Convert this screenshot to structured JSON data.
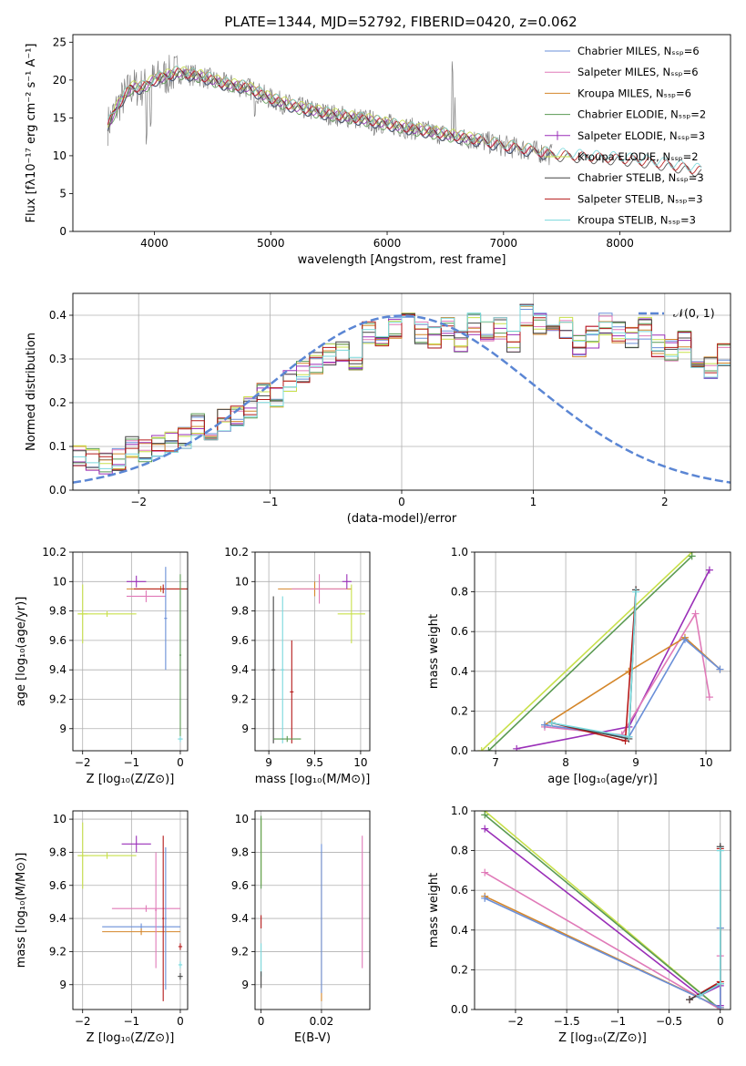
{
  "page": {
    "title": "PLATE=1344, MJD=52792, FIBERID=0420, z=0.062"
  },
  "palette": {
    "Chabrier MILES": "#6a8fd8",
    "Salpeter MILES": "#e07ab8",
    "Kroupa MILES": "#d4862a",
    "Chabrier ELODIE": "#5a9a52",
    "Salpeter ELODIE": "#9a2fb8",
    "Kroupa ELODIE": "#c8e04a",
    "Chabrier STELIB": "#444444",
    "Salpeter STELIB": "#b51a1a",
    "Kroupa STELIB": "#7ad8dc",
    "data": "#808080",
    "gaussian": "#5b86d4"
  },
  "chart_data": [
    {
      "id": "spectrum",
      "type": "line",
      "xlabel": "wavelength [Angstrom, rest frame]",
      "ylabel": "Flux [fλ10⁻¹⁷ erg cm⁻² s⁻¹ A⁻¹]",
      "xlim": [
        3300,
        8950
      ],
      "ylim": [
        0,
        26
      ],
      "xticks": [
        4000,
        5000,
        6000,
        7000,
        8000
      ],
      "yticks": [
        0,
        5,
        10,
        15,
        20,
        25
      ],
      "legend_position": "top-right",
      "legend": [
        "Chabrier MILES, Nₛₛₚ=6",
        "Salpeter MILES, Nₛₛₚ=6",
        "Kroupa MILES, Nₛₛₚ=6",
        "Chabrier ELODIE, Nₛₛₚ=2",
        "Salpeter ELODIE, Nₛₛₚ=3",
        "Kroupa ELODIE, Nₛₛₚ=2",
        "Chabrier STELIB, Nₛₛₚ=3",
        "Salpeter STELIB, Nₛₛₚ=3",
        "Kroupa STELIB, Nₛₛₚ=3"
      ],
      "continuum": {
        "x": [
          3600,
          3700,
          3800,
          3900,
          4000,
          4200,
          4400,
          4600,
          4800,
          5000,
          5200,
          5500,
          5800,
          6000,
          6200,
          6500,
          6800,
          7000,
          7200,
          7400,
          7600,
          7800,
          8000,
          8200,
          8500,
          8700
        ],
        "y": [
          14,
          17,
          19,
          19,
          20,
          21,
          20.5,
          19.5,
          19,
          17.5,
          16.5,
          15.5,
          14.8,
          14.2,
          13.6,
          12.8,
          12,
          11.3,
          10.8,
          10.2,
          10,
          9.8,
          9.6,
          9.3,
          8.6,
          8.0
        ]
      }
    },
    {
      "id": "residual-histogram",
      "type": "bar",
      "xlabel": "(data-model)/error",
      "ylabel": "Normed distribution",
      "xlim": [
        -2.5,
        2.5
      ],
      "ylim": [
        0,
        0.45
      ],
      "xticks": [
        -2,
        -1,
        0,
        1,
        2
      ],
      "yticks": [
        0.0,
        0.1,
        0.2,
        0.3,
        0.4
      ],
      "legend_position": "top-right",
      "gaussian_label": "𝒩(0, 1)",
      "bin_width": 0.1,
      "bin_start": -2.5,
      "reference_values": [
        0.08,
        0.07,
        0.06,
        0.07,
        0.1,
        0.09,
        0.1,
        0.11,
        0.12,
        0.15,
        0.14,
        0.16,
        0.17,
        0.19,
        0.22,
        0.21,
        0.25,
        0.27,
        0.29,
        0.31,
        0.32,
        0.3,
        0.36,
        0.34,
        0.37,
        0.38,
        0.36,
        0.35,
        0.37,
        0.34,
        0.38,
        0.36,
        0.37,
        0.34,
        0.4,
        0.38,
        0.36,
        0.37,
        0.33,
        0.35,
        0.38,
        0.36,
        0.35,
        0.37,
        0.33,
        0.32,
        0.34,
        0.3,
        0.28,
        0.31,
        0.27,
        0.25,
        0.24,
        0.22,
        0.2,
        0.19,
        0.17,
        0.15,
        0.13,
        0.11,
        0.1,
        0.09,
        0.08,
        0.07,
        0.06,
        0.05,
        0.05,
        0.04,
        0.03,
        0.03,
        0.03,
        0.02,
        0.02,
        0.02,
        0.02
      ]
    },
    {
      "id": "age-vs-Z",
      "type": "scatter",
      "xlabel": "Z [log₁₀(Z/Z⊙)]",
      "ylabel": "age  [log₁₀(age/yr)]",
      "xlim": [
        -2.2,
        0.15
      ],
      "ylim": [
        8.85,
        10.2
      ],
      "xticks": [
        -2,
        -1,
        0
      ],
      "yticks": [
        9.0,
        9.2,
        9.4,
        9.6,
        9.8,
        10.0,
        10.2
      ],
      "points": [
        {
          "model": "Kroupa ELODIE",
          "x": -2.0,
          "y": 9.78,
          "xerr": 0.1,
          "yerr": 0.2
        },
        {
          "model": "Kroupa ELODIE",
          "x": -1.5,
          "y": 9.78,
          "xerr": 0.6,
          "yerr": 0.02
        },
        {
          "model": "Salpeter ELODIE",
          "x": -0.9,
          "y": 10.0,
          "xerr": 0.2,
          "yerr": 0.04
        },
        {
          "model": "Salpeter MILES",
          "x": -0.7,
          "y": 9.9,
          "xerr": 0.4,
          "yerr": 0.04
        },
        {
          "model": "Kroupa MILES",
          "x": -0.4,
          "y": 9.95,
          "xerr": 0.7,
          "yerr": 0.02
        },
        {
          "model": "Salpeter STELIB",
          "x": -0.35,
          "y": 9.95,
          "xerr": 0.6,
          "yerr": 0.03
        },
        {
          "model": "Chabrier MILES",
          "x": -0.3,
          "y": 9.75,
          "xerr": 0.03,
          "yerr": 0.35
        },
        {
          "model": "Kroupa STELIB",
          "x": 0.0,
          "y": 8.93,
          "xerr": 0.05,
          "yerr": 0.02
        },
        {
          "model": "Chabrier ELODIE",
          "x": 0.0,
          "y": 9.5,
          "xerr": 0.02,
          "yerr": 0.55
        }
      ]
    },
    {
      "id": "age-vs-mass",
      "type": "scatter",
      "xlabel": "mass [log₁₀(M/M⊙)]",
      "ylabel": "",
      "xlim": [
        8.85,
        10.1
      ],
      "ylim": [
        8.85,
        10.2
      ],
      "xticks": [
        9.0,
        9.5,
        10.0
      ],
      "yticks": [
        9.0,
        9.2,
        9.4,
        9.6,
        9.8,
        10.0,
        10.2
      ],
      "points": [
        {
          "model": "Kroupa MILES",
          "x": 9.5,
          "y": 9.95,
          "xerr": 0.4,
          "yerr": 0.05
        },
        {
          "model": "Salpeter MILES",
          "x": 9.55,
          "y": 9.95,
          "xerr": 0.3,
          "yerr": 0.1
        },
        {
          "model": "Salpeter ELODIE",
          "x": 9.85,
          "y": 10.0,
          "xerr": 0.05,
          "yerr": 0.05
        },
        {
          "model": "Kroupa ELODIE",
          "x": 9.9,
          "y": 9.78,
          "xerr": 0.15,
          "yerr": 0.2
        },
        {
          "model": "Chabrier STELIB",
          "x": 9.05,
          "y": 9.4,
          "xerr": 0.02,
          "yerr": 0.5
        },
        {
          "model": "Kroupa STELIB",
          "x": 9.15,
          "y": 9.4,
          "xerr": 0.02,
          "yerr": 0.5
        },
        {
          "model": "Salpeter STELIB",
          "x": 9.25,
          "y": 9.25,
          "xerr": 0.02,
          "yerr": 0.35
        },
        {
          "model": "Chabrier ELODIE",
          "x": 9.2,
          "y": 8.93,
          "xerr": 0.15,
          "yerr": 0.02
        }
      ]
    },
    {
      "id": "mass-weight-vs-age",
      "type": "line",
      "xlabel": "age  [log₁₀(age/yr)]",
      "ylabel": "mass weight",
      "xlim": [
        6.7,
        10.35
      ],
      "ylim": [
        0,
        1
      ],
      "xticks": [
        7,
        8,
        9,
        10
      ],
      "yticks": [
        0.0,
        0.2,
        0.4,
        0.6,
        0.8,
        1.0
      ],
      "series": [
        {
          "model": "Kroupa ELODIE",
          "x": [
            6.8,
            9.8
          ],
          "y": [
            0.0,
            1.0
          ]
        },
        {
          "model": "Chabrier ELODIE",
          "x": [
            6.9,
            9.8
          ],
          "y": [
            0.0,
            0.98
          ]
        },
        {
          "model": "Salpeter ELODIE",
          "x": [
            7.3,
            8.9,
            10.05
          ],
          "y": [
            0.01,
            0.12,
            0.91
          ]
        },
        {
          "model": "Salpeter MILES",
          "x": [
            7.7,
            8.8,
            9.85,
            10.05
          ],
          "y": [
            0.12,
            0.08,
            0.69,
            0.27
          ]
        },
        {
          "model": "Kroupa MILES",
          "x": [
            7.7,
            8.9,
            9.7,
            10.2
          ],
          "y": [
            0.13,
            0.4,
            0.57,
            0.41
          ]
        },
        {
          "model": "Chabrier MILES",
          "x": [
            7.7,
            8.9,
            9.7,
            10.2
          ],
          "y": [
            0.13,
            0.07,
            0.56,
            0.41
          ]
        },
        {
          "model": "Salpeter STELIB",
          "x": [
            7.8,
            8.85,
            9.0
          ],
          "y": [
            0.14,
            0.05,
            0.81
          ]
        },
        {
          "model": "Chabrier STELIB",
          "x": [
            7.8,
            8.9,
            9.0
          ],
          "y": [
            0.14,
            0.06,
            0.81
          ]
        },
        {
          "model": "Kroupa STELIB",
          "x": [
            7.8,
            8.9,
            9.0
          ],
          "y": [
            0.14,
            0.07,
            0.8
          ]
        }
      ]
    },
    {
      "id": "mass-vs-Z",
      "type": "scatter",
      "xlabel": "Z [log₁₀(Z/Z⊙)]",
      "ylabel": "mass [log₁₀(M/M⊙)]",
      "xlim": [
        -2.2,
        0.15
      ],
      "ylim": [
        8.85,
        10.05
      ],
      "xticks": [
        -2,
        -1,
        0
      ],
      "yticks": [
        9.0,
        9.2,
        9.4,
        9.6,
        9.8,
        10.0
      ],
      "points": [
        {
          "model": "Kroupa ELODIE",
          "x": -2.0,
          "y": 9.78,
          "xerr": 0.1,
          "yerr": 0.2
        },
        {
          "model": "Kroupa ELODIE",
          "x": -1.5,
          "y": 9.78,
          "xerr": 0.6,
          "yerr": 0.02
        },
        {
          "model": "Salpeter ELODIE",
          "x": -0.9,
          "y": 9.85,
          "xerr": 0.3,
          "yerr": 0.05
        },
        {
          "model": "Salpeter MILES",
          "x": -0.7,
          "y": 9.46,
          "xerr": 0.7,
          "yerr": 0.02
        },
        {
          "model": "Chabrier MILES",
          "x": -0.8,
          "y": 9.35,
          "xerr": 0.8,
          "yerr": 0.02
        },
        {
          "model": "Kroupa MILES",
          "x": -0.8,
          "y": 9.32,
          "xerr": 0.8,
          "yerr": 0.02
        },
        {
          "model": "Salpeter MILES",
          "x": -0.5,
          "y": 9.45,
          "xerr": 0.02,
          "yerr": 0.35
        },
        {
          "model": "Salpeter STELIB",
          "x": -0.35,
          "y": 9.4,
          "xerr": 0.02,
          "yerr": 0.5
        },
        {
          "model": "Chabrier MILES",
          "x": -0.3,
          "y": 9.4,
          "xerr": 0.02,
          "yerr": 0.43
        },
        {
          "model": "Chabrier STELIB",
          "x": 0.0,
          "y": 9.05,
          "xerr": 0.05,
          "yerr": 0.02
        },
        {
          "model": "Kroupa STELIB",
          "x": 0.0,
          "y": 9.12,
          "xerr": 0.04,
          "yerr": 0.02
        },
        {
          "model": "Salpeter STELIB",
          "x": 0.0,
          "y": 9.23,
          "xerr": 0.04,
          "yerr": 0.02
        }
      ]
    },
    {
      "id": "mass-vs-EBV",
      "type": "scatter",
      "xlabel": "E(B-V)",
      "ylabel": "",
      "xlim": [
        -0.002,
        0.036
      ],
      "ylim": [
        8.85,
        10.05
      ],
      "xticks": [
        0.0,
        0.02
      ],
      "yticks": [
        9.0,
        9.2,
        9.4,
        9.6,
        9.8,
        10.0
      ],
      "points": [
        {
          "model": "Kroupa ELODIE",
          "x": 0.0,
          "y": 9.8,
          "xerr": 0.0,
          "yerr": 0.2
        },
        {
          "model": "Chabrier ELODIE",
          "x": 0.0,
          "y": 9.8,
          "xerr": 0.0,
          "yerr": 0.22
        },
        {
          "model": "Salpeter STELIB",
          "x": 0.0,
          "y": 9.38,
          "xerr": 0.0,
          "yerr": 0.04
        },
        {
          "model": "Kroupa STELIB",
          "x": 0.0,
          "y": 9.15,
          "xerr": 0.0,
          "yerr": 0.1
        },
        {
          "model": "Chabrier STELIB",
          "x": 0.0,
          "y": 9.03,
          "xerr": 0.0,
          "yerr": 0.05
        },
        {
          "model": "Kroupa MILES",
          "x": 0.02,
          "y": 9.35,
          "xerr": 0.0,
          "yerr": 0.45
        },
        {
          "model": "Chabrier MILES",
          "x": 0.02,
          "y": 9.4,
          "xerr": 0.0,
          "yerr": 0.45
        },
        {
          "model": "Salpeter MILES",
          "x": 0.0335,
          "y": 9.5,
          "xerr": 0.0,
          "yerr": 0.4
        }
      ]
    },
    {
      "id": "mass-weight-vs-Z",
      "type": "line",
      "xlabel": "Z [log₁₀(Z/Z⊙)]",
      "ylabel": "mass weight",
      "xlim": [
        -2.4,
        0.1
      ],
      "ylim": [
        0,
        1
      ],
      "xticks": [
        -2.0,
        -1.5,
        -1.0,
        -0.5,
        0.0
      ],
      "yticks": [
        0.0,
        0.2,
        0.4,
        0.6,
        0.8,
        1.0
      ],
      "series": [
        {
          "model": "Kroupa ELODIE",
          "x": [
            -2.3,
            0.0
          ],
          "y": [
            1.0,
            0.0
          ]
        },
        {
          "model": "Chabrier ELODIE",
          "x": [
            -2.3,
            0.0
          ],
          "y": [
            0.98,
            0.0
          ]
        },
        {
          "model": "Salpeter ELODIE",
          "x": [
            -2.3,
            -0.2,
            0.0,
            0.0
          ],
          "y": [
            0.91,
            0.07,
            0.12,
            0.02
          ]
        },
        {
          "model": "Salpeter MILES",
          "x": [
            -2.3,
            0.0,
            0.0
          ],
          "y": [
            0.69,
            0.0,
            0.27
          ]
        },
        {
          "model": "Kroupa MILES",
          "x": [
            -2.3,
            0.0,
            0.0
          ],
          "y": [
            0.57,
            0.01,
            0.41
          ]
        },
        {
          "model": "Chabrier MILES",
          "x": [
            -2.3,
            0.0,
            0.0
          ],
          "y": [
            0.56,
            0.01,
            0.41
          ]
        },
        {
          "model": "Salpeter STELIB",
          "x": [
            -0.3,
            0.0,
            0.0
          ],
          "y": [
            0.05,
            0.14,
            0.81
          ]
        },
        {
          "model": "Chabrier STELIB",
          "x": [
            -0.3,
            0.0,
            0.0
          ],
          "y": [
            0.05,
            0.13,
            0.82
          ]
        },
        {
          "model": "Kroupa STELIB",
          "x": [
            -0.2,
            0.0,
            0.0
          ],
          "y": [
            0.07,
            0.13,
            0.8
          ]
        }
      ]
    }
  ]
}
